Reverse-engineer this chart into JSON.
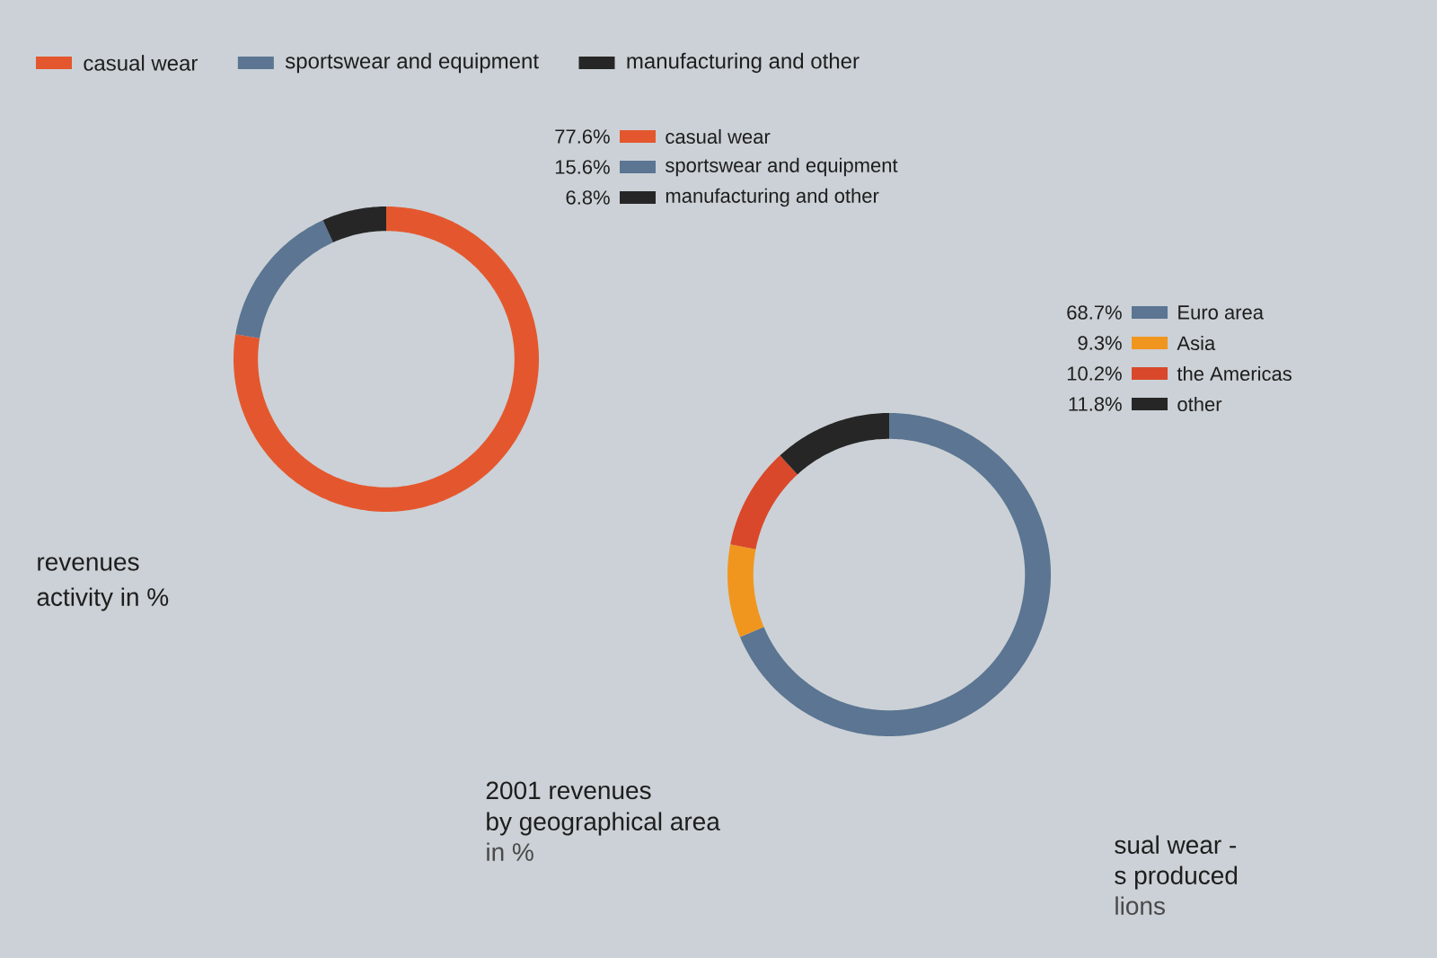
{
  "chart_data": [
    {
      "type": "other",
      "categories": [
        "casual wear",
        "sportswear and equipment",
        "manufacturing and other"
      ],
      "colors": [
        "#e4572e",
        "#5b7592",
        "#262626"
      ]
    },
    {
      "type": "donut",
      "title": "revenues",
      "subtitle": "activity in %",
      "categories": [
        "casual wear",
        "sportswear and equipment",
        "manufacturing and other"
      ],
      "values": [
        77.6,
        15.6,
        6.8
      ],
      "value_labels": [
        "77.6%",
        "15.6%",
        "6.8%"
      ],
      "colors": [
        "#e4572e",
        "#5b7592",
        "#262626"
      ],
      "legend": "top right"
    },
    {
      "type": "donut",
      "title": "2001 revenues",
      "subtitle": "by geographical area",
      "annotations": [
        "in %"
      ],
      "categories": [
        "Euro area",
        "Asia",
        "the Americas",
        "other"
      ],
      "values": [
        68.7,
        9.3,
        10.2,
        11.8
      ],
      "value_labels": [
        "68.7%",
        "9.3%",
        "10.2%",
        "11.8%"
      ],
      "colors": [
        "#5b7592",
        "#f0961e",
        "#d9482a",
        "#262626"
      ],
      "legend": "top right"
    },
    {
      "type": "other",
      "title": "sual wear -",
      "subtitle": "s produced",
      "annotations": [
        "lions"
      ]
    }
  ]
}
